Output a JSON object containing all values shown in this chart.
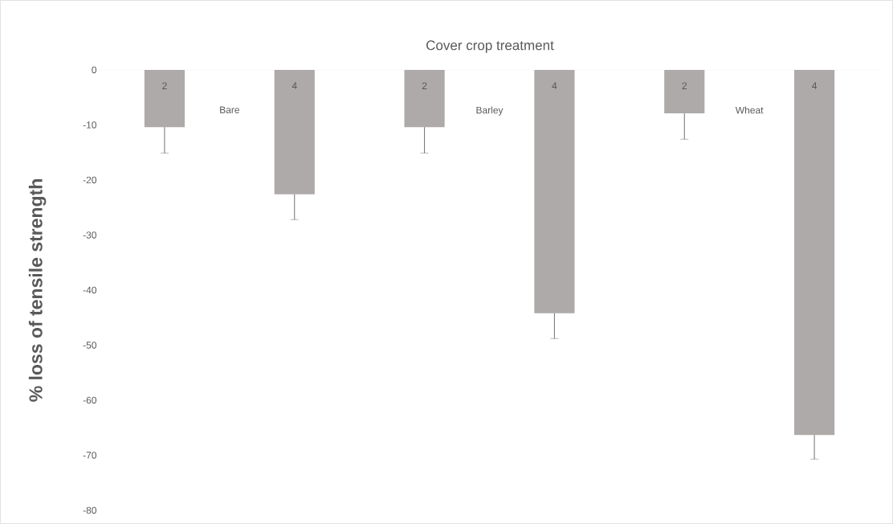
{
  "chart_data": {
    "type": "bar",
    "title": "Cover crop treatment",
    "ylabel": "% loss of tensile strength",
    "categories": [
      "2",
      "4",
      "2",
      "4",
      "2",
      "4"
    ],
    "values": [
      -10.4,
      -22.6,
      -10.4,
      -44.2,
      -7.9,
      -66.3
    ],
    "errors": [
      [
        -15.1,
        -10.4
      ],
      [
        -27.2,
        -22.6
      ],
      [
        -15.1,
        -10.4
      ],
      [
        -48.8,
        -44.2
      ],
      [
        -12.6,
        -7.9
      ],
      [
        -70.7,
        -66.3
      ]
    ],
    "color": "#adaaa9",
    "annotations": [
      "Bare",
      "Barley",
      "Wheat"
    ],
    "ylim": [
      -80,
      0
    ],
    "yticks": [
      -80,
      -70,
      -60,
      -50,
      -40,
      -30,
      -20,
      -10,
      0
    ]
  }
}
